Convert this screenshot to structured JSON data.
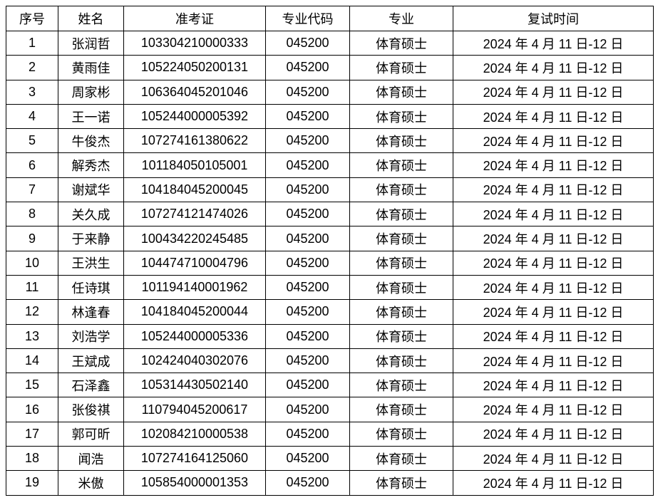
{
  "headers": [
    "序号",
    "姓名",
    "准考证",
    "专业代码",
    "专业",
    "复试时间"
  ],
  "rows": [
    [
      "1",
      "张润哲",
      "103304210000333",
      "045200",
      "体育硕士",
      "2024 年 4 月 11 日-12 日"
    ],
    [
      "2",
      "黄雨佳",
      "105224050200131",
      "045200",
      "体育硕士",
      "2024 年 4 月 11 日-12 日"
    ],
    [
      "3",
      "周家彬",
      "106364045201046",
      "045200",
      "体育硕士",
      "2024 年 4 月 11 日-12 日"
    ],
    [
      "4",
      "王一诺",
      "105244000005392",
      "045200",
      "体育硕士",
      "2024 年 4 月 11 日-12 日"
    ],
    [
      "5",
      "牛俊杰",
      "107274161380622",
      "045200",
      "体育硕士",
      "2024 年 4 月 11 日-12 日"
    ],
    [
      "6",
      "解秀杰",
      "101184050105001",
      "045200",
      "体育硕士",
      "2024 年 4 月 11 日-12 日"
    ],
    [
      "7",
      "谢斌华",
      "104184045200045",
      "045200",
      "体育硕士",
      "2024 年 4 月 11 日-12 日"
    ],
    [
      "8",
      "关久成",
      "107274121474026",
      "045200",
      "体育硕士",
      "2024 年 4 月 11 日-12 日"
    ],
    [
      "9",
      "于来静",
      "100434220245485",
      "045200",
      "体育硕士",
      "2024 年 4 月 11 日-12 日"
    ],
    [
      "10",
      "王洪生",
      "104474710004796",
      "045200",
      "体育硕士",
      "2024 年 4 月 11 日-12 日"
    ],
    [
      "11",
      "任诗琪",
      "101194140001962",
      "045200",
      "体育硕士",
      "2024 年 4 月 11 日-12 日"
    ],
    [
      "12",
      "林逢春",
      "104184045200044",
      "045200",
      "体育硕士",
      "2024 年 4 月 11 日-12 日"
    ],
    [
      "13",
      "刘浩学",
      "105244000005336",
      "045200",
      "体育硕士",
      "2024 年 4 月 11 日-12 日"
    ],
    [
      "14",
      "王斌成",
      "102424040302076",
      "045200",
      "体育硕士",
      "2024 年 4 月 11 日-12 日"
    ],
    [
      "15",
      "石泽鑫",
      "105314430502140",
      "045200",
      "体育硕士",
      "2024 年 4 月 11 日-12 日"
    ],
    [
      "16",
      "张俊祺",
      "110794045200617",
      "045200",
      "体育硕士",
      "2024 年 4 月 11 日-12 日"
    ],
    [
      "17",
      "郭可昕",
      "102084210000538",
      "045200",
      "体育硕士",
      "2024 年 4 月 11 日-12 日"
    ],
    [
      "18",
      "闻浩",
      "107274164125060",
      "045200",
      "体育硕士",
      "2024 年 4 月 11 日-12 日"
    ],
    [
      "19",
      "米傲",
      "105854000001353",
      "045200",
      "体育硕士",
      "2024 年 4 月 11 日-12 日"
    ]
  ]
}
